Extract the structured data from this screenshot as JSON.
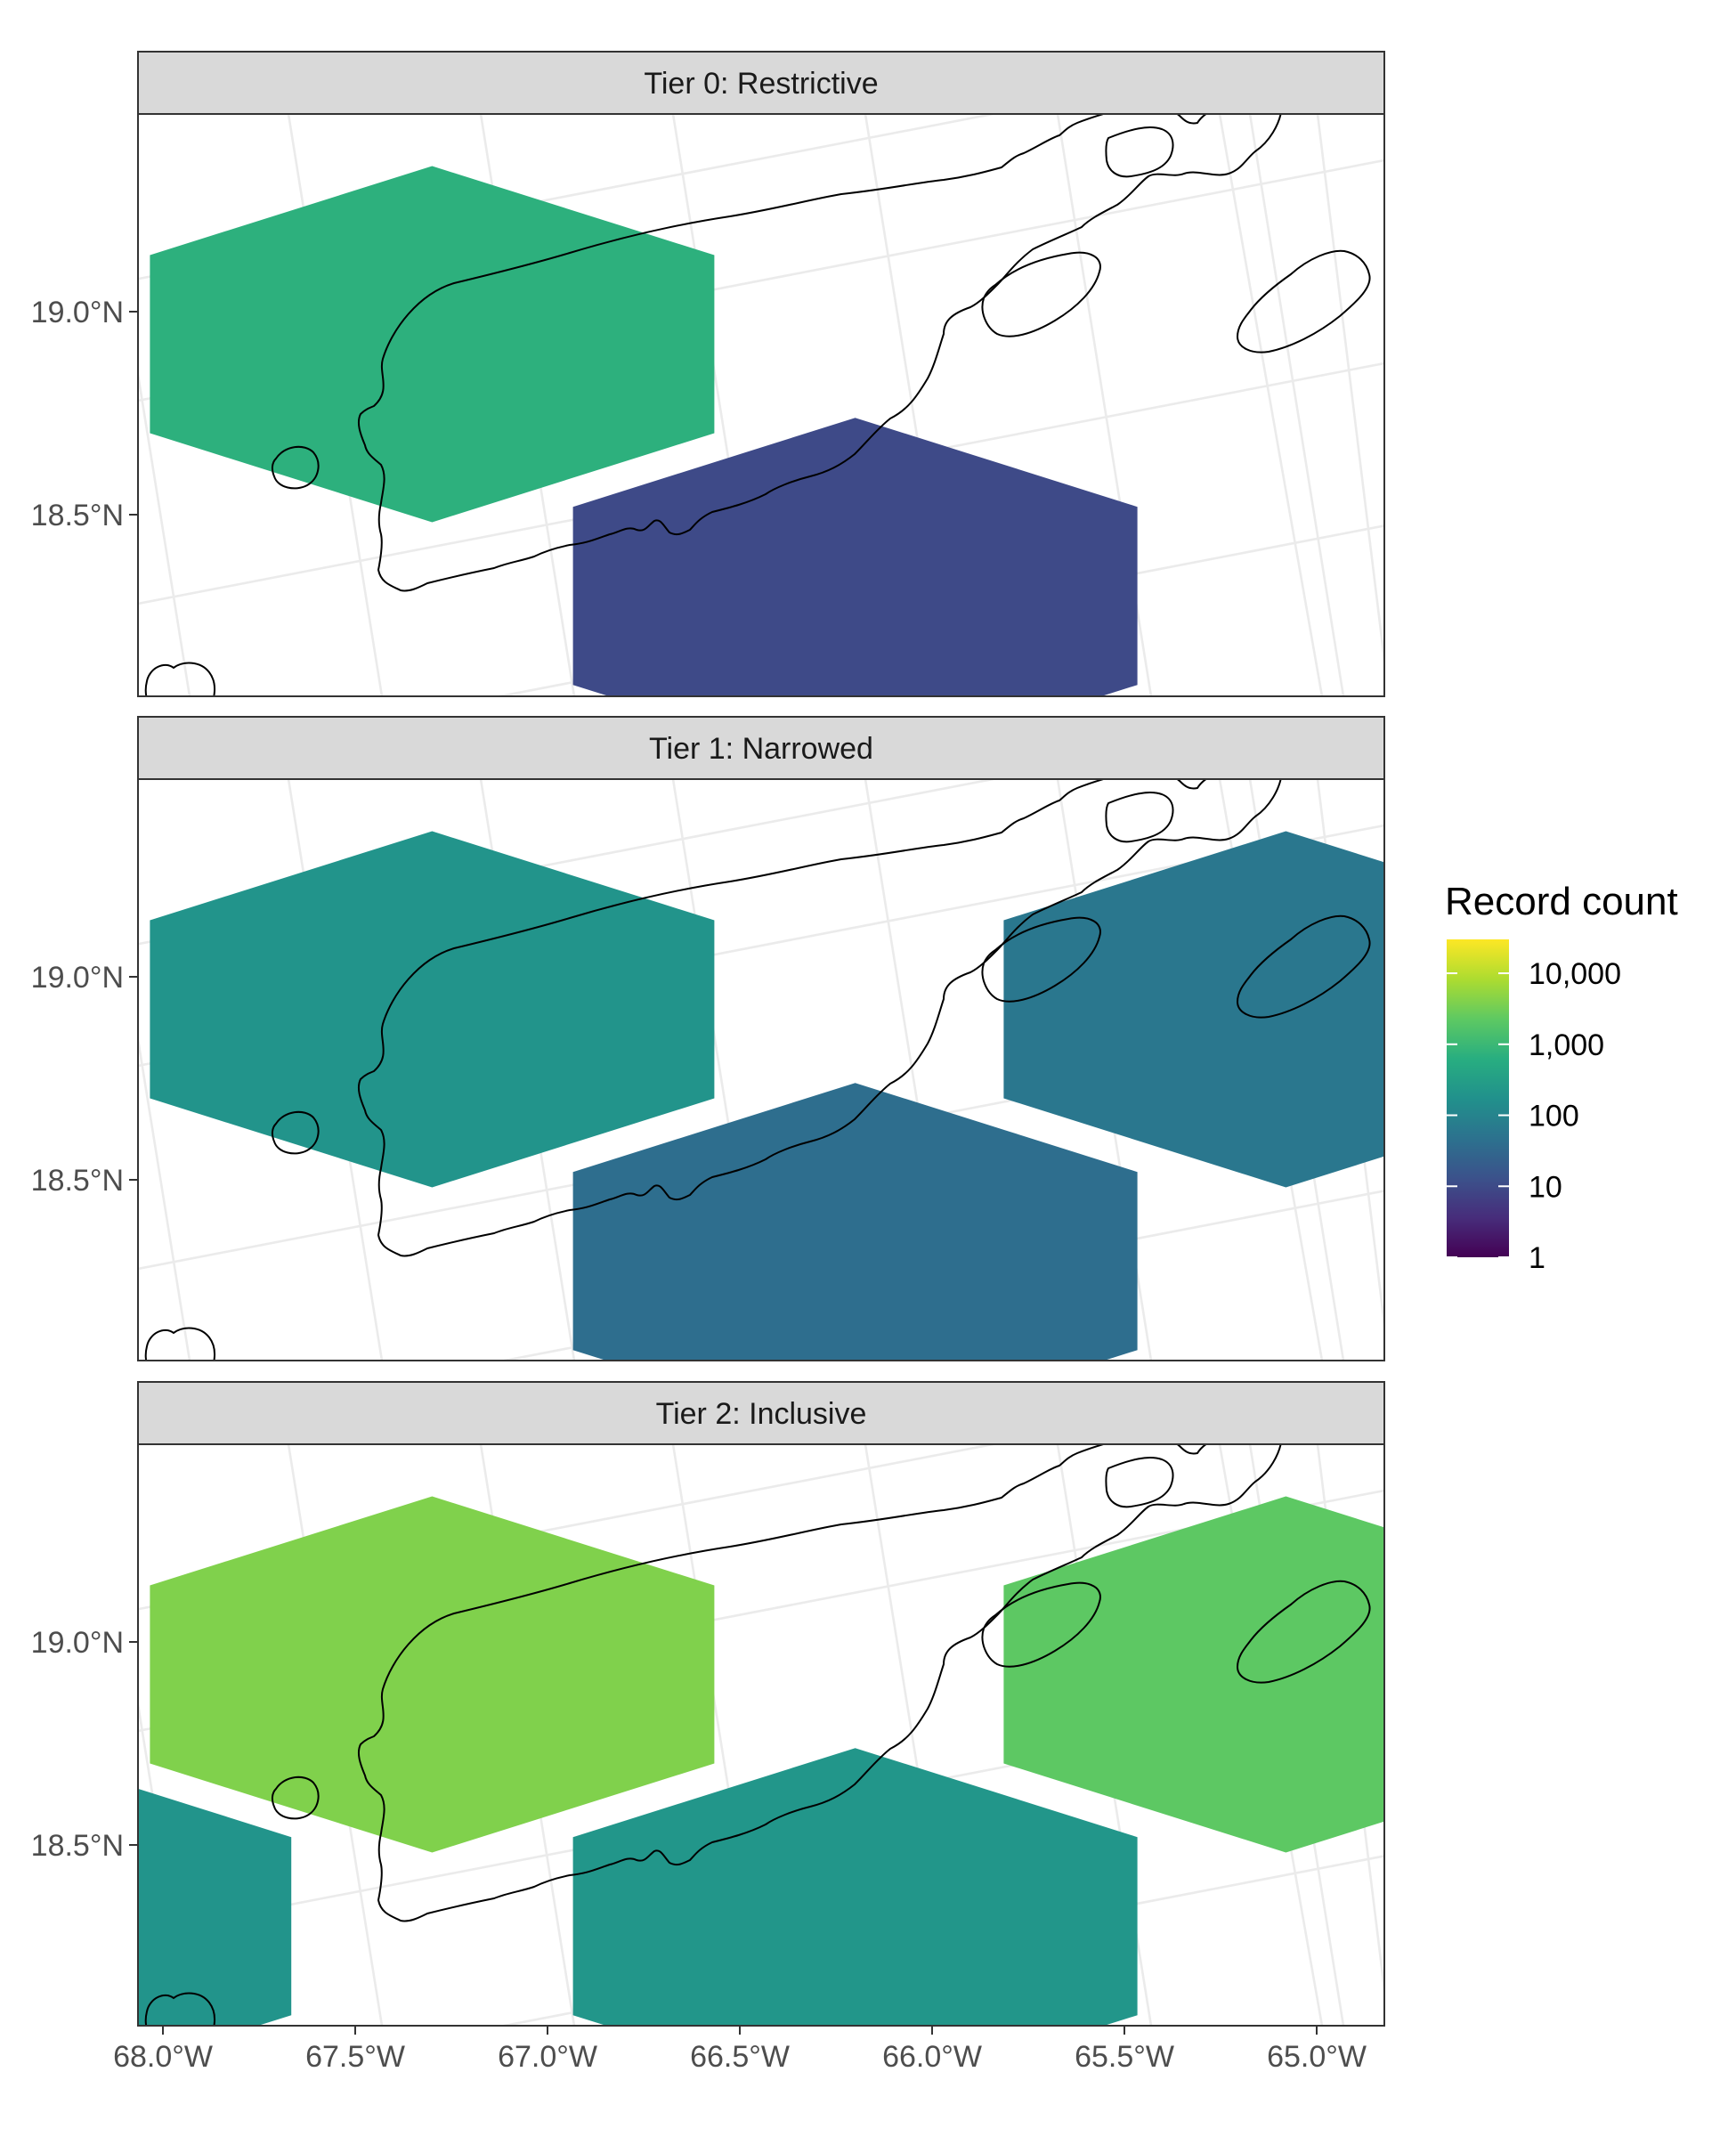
{
  "chart_data": {
    "type": "heatmap",
    "subtype": "faceted hexbin map",
    "colorscale": "viridis",
    "color_scale_log": true,
    "legend": {
      "title": "Record count",
      "placement": "right",
      "breaks": [
        1,
        10,
        100,
        1000,
        10000
      ],
      "labels": [
        "1",
        "10",
        "100",
        "1,000",
        "10,000"
      ],
      "limits": [
        1,
        30000
      ]
    },
    "x_axis": {
      "ticks": [
        -68.0,
        -67.5,
        -67.0,
        -66.5,
        -66.0,
        -65.5,
        -65.0
      ],
      "tick_labels": [
        "68.0°W",
        "67.5°W",
        "67.0°W",
        "66.5°W",
        "66.0°W",
        "65.5°W",
        "65.0°W"
      ],
      "range": [
        -68.05,
        -64.8
      ]
    },
    "y_axis": {
      "ticks": [
        18.5,
        19.0
      ],
      "tick_labels": [
        "18.5°N",
        "19.0°N"
      ],
      "range": [
        18.05,
        19.48
      ]
    },
    "grid": true,
    "hex_centers": [
      {
        "id": "west",
        "lon": -68.4,
        "lat": 18.3
      },
      {
        "id": "northwest",
        "lon": -67.3,
        "lat": 18.92
      },
      {
        "id": "south",
        "lon": -66.2,
        "lat": 18.3
      },
      {
        "id": "northeast",
        "lon": -65.08,
        "lat": 18.92
      }
    ],
    "facets": [
      {
        "title": "Tier 0: Restrictive",
        "cells": [
          {
            "hex": "northwest",
            "count": 700
          },
          {
            "hex": "south",
            "count": 10
          }
        ]
      },
      {
        "title": "Tier 1: Narrowed",
        "cells": [
          {
            "hex": "northwest",
            "count": 200
          },
          {
            "hex": "northeast",
            "count": 60
          },
          {
            "hex": "south",
            "count": 40
          }
        ]
      },
      {
        "title": "Tier 2: Inclusive",
        "cells": [
          {
            "hex": "northwest",
            "count": 4000
          },
          {
            "hex": "northeast",
            "count": 2200
          },
          {
            "hex": "west",
            "count": 200
          },
          {
            "hex": "south",
            "count": 220
          }
        ]
      }
    ],
    "colors": {
      "panel_border": "#333333",
      "strip_fill": "#d9d9d9",
      "grid": "#ebebeb",
      "coastline": "#000000"
    }
  }
}
